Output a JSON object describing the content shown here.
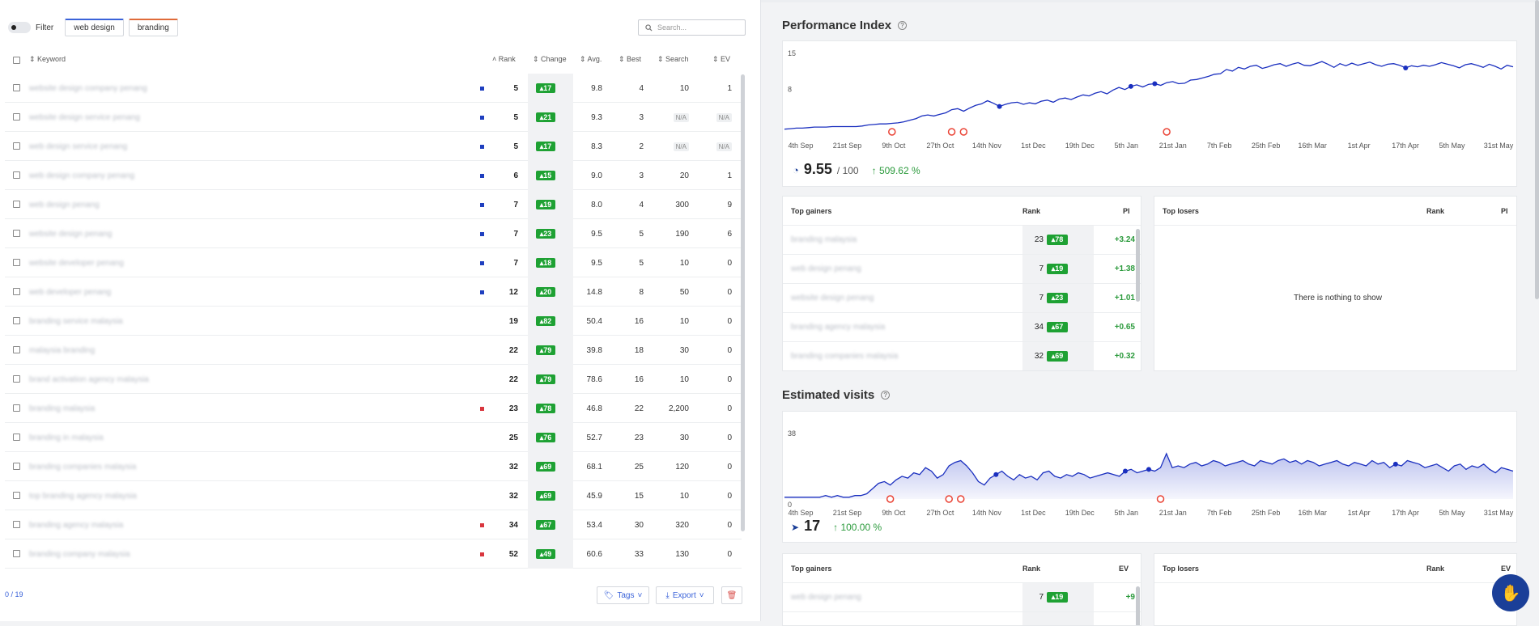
{
  "toolbar": {
    "filter_label": "Filter",
    "tags": [
      "web design",
      "branding"
    ],
    "search_placeholder": "Search..."
  },
  "table": {
    "headers": {
      "keyword": "Keyword",
      "rank": "Rank",
      "change": "Change",
      "avg": "Avg.",
      "best": "Best",
      "search": "Search",
      "ev": "EV"
    },
    "rows": [
      {
        "keyword": "website design company penang",
        "mark": "blue",
        "rank": "5",
        "change": "17",
        "avg": "9.8",
        "best": "4",
        "search": "10",
        "ev": "1"
      },
      {
        "keyword": "website design service penang",
        "mark": "blue",
        "rank": "5",
        "change": "21",
        "avg": "9.3",
        "best": "3",
        "search": "N/A",
        "ev": "N/A"
      },
      {
        "keyword": "web design service penang",
        "mark": "blue",
        "rank": "5",
        "change": "17",
        "avg": "8.3",
        "best": "2",
        "search": "N/A",
        "ev": "N/A"
      },
      {
        "keyword": "web design company penang",
        "mark": "blue",
        "rank": "6",
        "change": "15",
        "avg": "9.0",
        "best": "3",
        "search": "20",
        "ev": "1"
      },
      {
        "keyword": "web design penang",
        "mark": "blue",
        "rank": "7",
        "change": "19",
        "avg": "8.0",
        "best": "4",
        "search": "300",
        "ev": "9"
      },
      {
        "keyword": "website design penang",
        "mark": "blue",
        "rank": "7",
        "change": "23",
        "avg": "9.5",
        "best": "5",
        "search": "190",
        "ev": "6"
      },
      {
        "keyword": "website developer penang",
        "mark": "blue",
        "rank": "7",
        "change": "18",
        "avg": "9.5",
        "best": "5",
        "search": "10",
        "ev": "0"
      },
      {
        "keyword": "web developer penang",
        "mark": "blue",
        "rank": "12",
        "change": "20",
        "avg": "14.8",
        "best": "8",
        "search": "50",
        "ev": "0"
      },
      {
        "keyword": "branding service malaysia",
        "mark": "",
        "rank": "19",
        "change": "82",
        "avg": "50.4",
        "best": "16",
        "search": "10",
        "ev": "0"
      },
      {
        "keyword": "malaysia branding",
        "mark": "",
        "rank": "22",
        "change": "79",
        "avg": "39.8",
        "best": "18",
        "search": "30",
        "ev": "0"
      },
      {
        "keyword": "brand activation agency malaysia",
        "mark": "",
        "rank": "22",
        "change": "79",
        "avg": "78.6",
        "best": "16",
        "search": "10",
        "ev": "0"
      },
      {
        "keyword": "branding malaysia",
        "mark": "red",
        "rank": "23",
        "change": "78",
        "avg": "46.8",
        "best": "22",
        "search": "2,200",
        "ev": "0"
      },
      {
        "keyword": "branding in malaysia",
        "mark": "",
        "rank": "25",
        "change": "76",
        "avg": "52.7",
        "best": "23",
        "search": "30",
        "ev": "0"
      },
      {
        "keyword": "branding companies malaysia",
        "mark": "",
        "rank": "32",
        "change": "69",
        "avg": "68.1",
        "best": "25",
        "search": "120",
        "ev": "0"
      },
      {
        "keyword": "top branding agency malaysia",
        "mark": "",
        "rank": "32",
        "change": "69",
        "avg": "45.9",
        "best": "15",
        "search": "10",
        "ev": "0"
      },
      {
        "keyword": "branding agency malaysia",
        "mark": "red",
        "rank": "34",
        "change": "67",
        "avg": "53.4",
        "best": "30",
        "search": "320",
        "ev": "0"
      },
      {
        "keyword": "branding company malaysia",
        "mark": "red",
        "rank": "52",
        "change": "49",
        "avg": "60.6",
        "best": "33",
        "search": "130",
        "ev": "0"
      }
    ]
  },
  "footer": {
    "count": "0 / 19",
    "tags_label": "Tags",
    "export_label": "Export"
  },
  "performance": {
    "title": "Performance Index",
    "value": "9.55",
    "out_of": "/ 100",
    "change": "509.62 %",
    "gainers": {
      "title": "Top gainers",
      "col_rank": "Rank",
      "col_pi": "PI",
      "rows": [
        {
          "keyword": "branding malaysia",
          "rank": "23",
          "change": "78",
          "pi": "+3.24"
        },
        {
          "keyword": "web design penang",
          "rank": "7",
          "change": "19",
          "pi": "+1.38"
        },
        {
          "keyword": "website design penang",
          "rank": "7",
          "change": "23",
          "pi": "+1.01"
        },
        {
          "keyword": "branding agency malaysia",
          "rank": "34",
          "change": "67",
          "pi": "+0.65"
        },
        {
          "keyword": "branding companies malaysia",
          "rank": "32",
          "change": "69",
          "pi": "+0.32"
        }
      ]
    },
    "losers": {
      "title": "Top losers",
      "col_rank": "Rank",
      "col_pi": "PI",
      "empty": "There is nothing to show"
    }
  },
  "visits": {
    "title": "Estimated visits",
    "value": "17",
    "change": "100.00 %",
    "gainers": {
      "title": "Top gainers",
      "col_rank": "Rank",
      "col_ev": "EV",
      "rows": [
        {
          "keyword": "web design penang",
          "rank": "7",
          "change": "19",
          "ev": "+9"
        }
      ]
    },
    "losers": {
      "title": "Top losers",
      "col_rank": "Rank",
      "col_ev": "EV"
    }
  },
  "chart_data": [
    {
      "type": "line",
      "ylim": [
        0,
        15
      ],
      "yticks": [
        "15",
        "8"
      ],
      "xticks": [
        "4th Sep",
        "21st Sep",
        "9th Oct",
        "27th Oct",
        "14th Nov",
        "1st Dec",
        "19th Dec",
        "5th Jan",
        "21st Jan",
        "7th Feb",
        "25th Feb",
        "16th Mar",
        "1st Apr",
        "17th Apr",
        "5th May",
        "31st May"
      ],
      "values": [
        0.5,
        0.6,
        0.7,
        0.7,
        0.8,
        0.9,
        0.9,
        0.9,
        1.0,
        1.0,
        1.0,
        1.0,
        1.0,
        1.1,
        1.3,
        1.4,
        1.5,
        1.5,
        1.6,
        1.7,
        1.9,
        2.2,
        2.5,
        3.0,
        3.2,
        3.0,
        3.3,
        3.6,
        4.2,
        4.4,
        3.9,
        4.5,
        5.0,
        5.3,
        5.9,
        5.4,
        4.8,
        5.2,
        5.5,
        5.6,
        5.2,
        5.5,
        5.3,
        5.8,
        6.0,
        5.6,
        6.2,
        6.4,
        6.1,
        6.6,
        7.0,
        6.8,
        7.3,
        7.6,
        7.2,
        7.9,
        8.4,
        8.0,
        8.6,
        8.9,
        8.5,
        9.0,
        9.1,
        8.8,
        9.3,
        9.5,
        9.1,
        9.2,
        9.8,
        9.9,
        10.2,
        10.5,
        10.9,
        11.0,
        11.8,
        11.5,
        12.2,
        11.9,
        12.4,
        12.6,
        12.0,
        12.3,
        12.7,
        12.9,
        12.4,
        12.8,
        13.1,
        12.6,
        12.5,
        12.9,
        13.3,
        12.8,
        12.2,
        12.9,
        12.5,
        13.0,
        12.6,
        12.9,
        13.2,
        12.7,
        12.4,
        12.8,
        12.9,
        12.6,
        12.1,
        12.5,
        12.3,
        12.6,
        12.4,
        12.7,
        13.1,
        12.8,
        12.5,
        12.1,
        12.7,
        12.9,
        12.6,
        12.2,
        12.8,
        12.4,
        11.9,
        12.6,
        12.3
      ]
    },
    {
      "type": "area",
      "ylim": [
        0,
        38
      ],
      "yticks": [
        "38",
        "0"
      ],
      "xticks": [
        "4th Sep",
        "21st Sep",
        "9th Oct",
        "27th Oct",
        "14th Nov",
        "1st Dec",
        "19th Dec",
        "5th Jan",
        "21st Jan",
        "7th Feb",
        "25th Feb",
        "16th Mar",
        "1st Apr",
        "17th Apr",
        "5th May",
        "31st May"
      ],
      "values": [
        1,
        1,
        1,
        1,
        1,
        1,
        1,
        2,
        1,
        2,
        1,
        1,
        2,
        2,
        3,
        6,
        9,
        10,
        8,
        11,
        13,
        12,
        15,
        14,
        18,
        16,
        12,
        14,
        19,
        21,
        22,
        19,
        15,
        10,
        8,
        12,
        14,
        16,
        13,
        11,
        14,
        12,
        13,
        11,
        15,
        16,
        13,
        12,
        14,
        13,
        15,
        14,
        12,
        13,
        14,
        15,
        14,
        13,
        16,
        17,
        15,
        16,
        17,
        16,
        18,
        26,
        18,
        19,
        18,
        20,
        21,
        19,
        20,
        22,
        21,
        19,
        20,
        21,
        22,
        20,
        19,
        22,
        21,
        20,
        22,
        23,
        21,
        22,
        20,
        22,
        21,
        19,
        20,
        21,
        22,
        20,
        19,
        21,
        20,
        19,
        22,
        20,
        21,
        18,
        20,
        19,
        22,
        21,
        20,
        18,
        19,
        20,
        18,
        16,
        19,
        20,
        17,
        19,
        18,
        20,
        17,
        15,
        18,
        17,
        16
      ]
    }
  ]
}
